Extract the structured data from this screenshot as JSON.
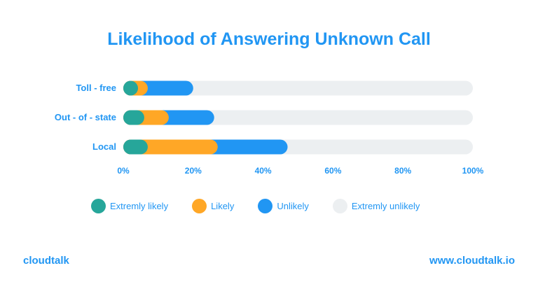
{
  "colors": {
    "accent": "#2196F3",
    "extremely_likely": "#26A69A",
    "likely": "#FFA726",
    "unlikely": "#2196F3",
    "extremely_unlikely": "#ECEFF1"
  },
  "chart_data": {
    "type": "bar",
    "orientation": "horizontal",
    "stacked": true,
    "title": "Likelihood of Answering Unknown Call",
    "categories": [
      "Toll - free",
      "Out - of - state",
      "Local"
    ],
    "x_ticks": [
      "0%",
      "20%",
      "40%",
      "60%",
      "80%",
      "100%"
    ],
    "xlim": [
      0,
      100
    ],
    "grid": false,
    "legend_position": "bottom",
    "series": [
      {
        "name": "Extremly likely",
        "values": [
          4,
          6,
          7
        ]
      },
      {
        "name": "Likely",
        "values": [
          3,
          7,
          20
        ]
      },
      {
        "name": "Unlikely",
        "values": [
          13,
          13,
          20
        ]
      },
      {
        "name": "Extremly unlikely",
        "values": [
          80,
          74,
          53
        ]
      }
    ]
  },
  "footer": {
    "brand": "cloudtalk",
    "url": "www.cloudtalk.io"
  }
}
